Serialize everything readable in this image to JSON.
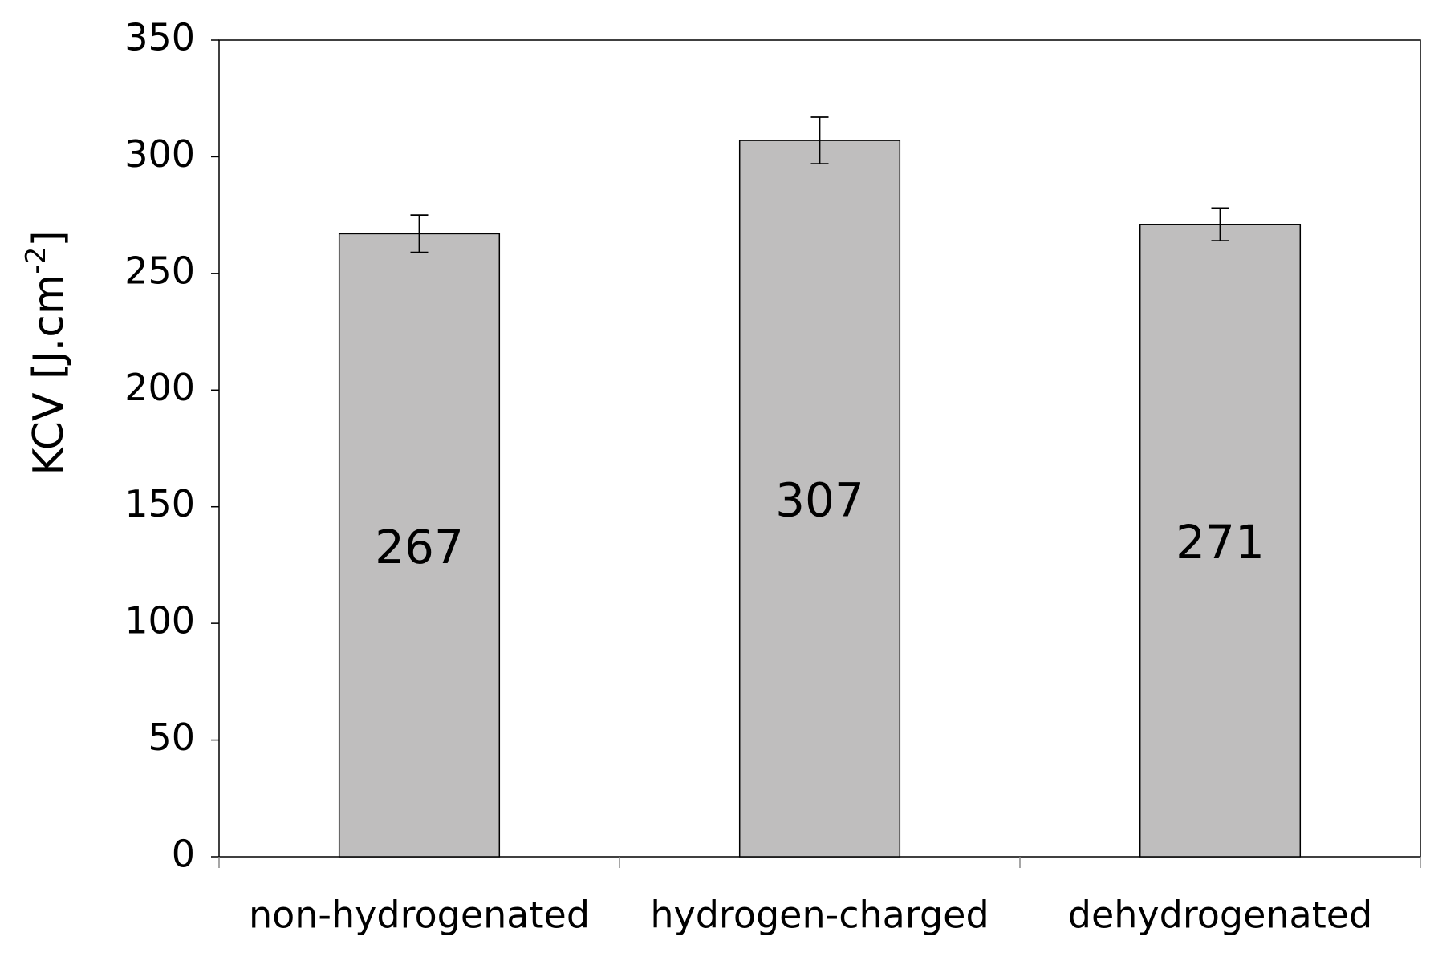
{
  "chart_data": {
    "type": "bar",
    "y_label": {
      "text": "KCV [J.cm",
      "superscript": "-2",
      "suffix": "]"
    },
    "categories": [
      "non-hydrogenated",
      "hydrogen-charged",
      "dehydrogenated"
    ],
    "values": [
      267,
      307,
      271
    ],
    "errors": [
      8,
      10,
      7
    ],
    "color": "#bfbebe",
    "ylim": [
      0,
      350
    ],
    "yticks": [
      0,
      50,
      100,
      150,
      200,
      250,
      300,
      350
    ],
    "grid": false
  }
}
